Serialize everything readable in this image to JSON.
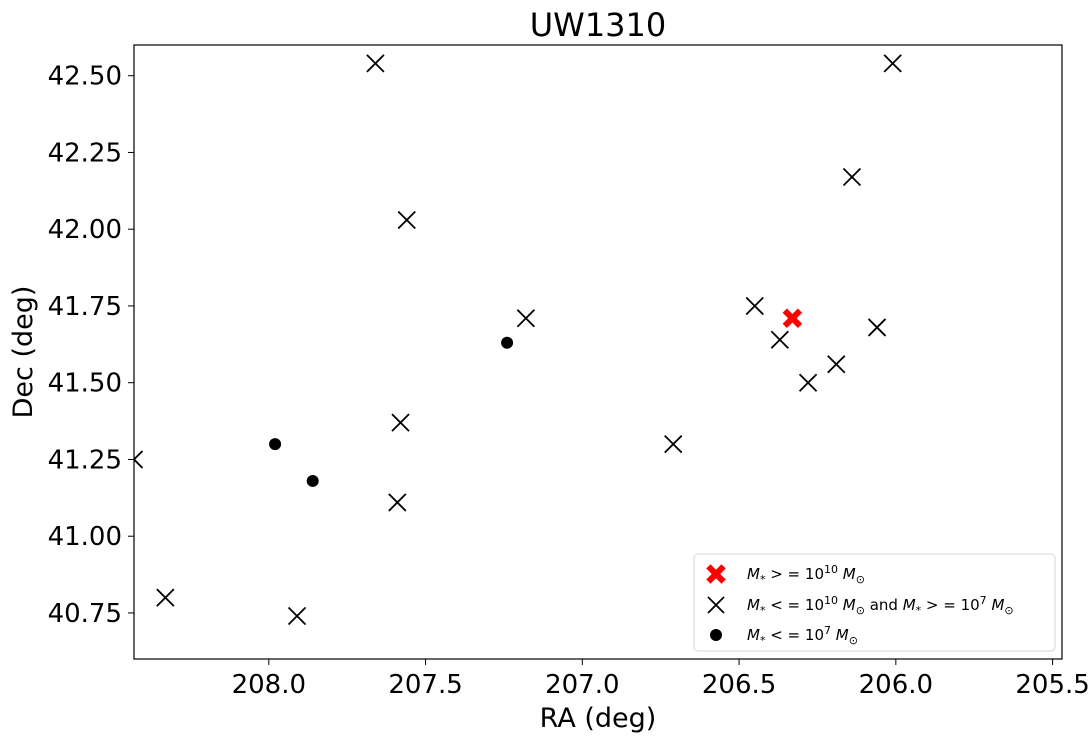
{
  "chart_data": {
    "type": "scatter",
    "title": "UW1310",
    "xlabel": "RA (deg)",
    "ylabel": "Dec (deg)",
    "xlim": [
      208.43,
      205.47
    ],
    "ylim": [
      40.6,
      42.6
    ],
    "x_inverted": true,
    "x_ticks": [
      208.0,
      207.5,
      207.0,
      206.5,
      206.0,
      205.5
    ],
    "x_tick_labels": [
      "208.0",
      "207.5",
      "207.0",
      "206.5",
      "206.0",
      "205.5"
    ],
    "y_ticks": [
      40.75,
      41.0,
      41.25,
      41.5,
      41.75,
      42.0,
      42.25,
      42.5
    ],
    "y_tick_labels": [
      "40.75",
      "41.00",
      "41.25",
      "41.50",
      "41.75",
      "42.00",
      "42.25",
      "42.50"
    ],
    "grid": false,
    "legend_position": "lower-right",
    "series": [
      {
        "name": "M* >= 10^10 M_sun",
        "marker": "filled-x",
        "color": "#ff0000",
        "points": [
          [
            206.33,
            41.71
          ]
        ]
      },
      {
        "name": "M* <= 10^10 M_sun and M* >= 10^7 M_sun",
        "marker": "x",
        "color": "#000000",
        "points": [
          [
            208.43,
            41.25
          ],
          [
            208.33,
            40.8
          ],
          [
            207.91,
            40.74
          ],
          [
            207.66,
            42.54
          ],
          [
            207.58,
            41.37
          ],
          [
            207.59,
            41.11
          ],
          [
            207.56,
            42.03
          ],
          [
            207.18,
            41.71
          ],
          [
            206.71,
            41.3
          ],
          [
            206.45,
            41.75
          ],
          [
            206.37,
            41.64
          ],
          [
            206.28,
            41.5
          ],
          [
            206.19,
            41.56
          ],
          [
            206.14,
            42.17
          ],
          [
            206.06,
            41.68
          ],
          [
            206.01,
            42.54
          ]
        ]
      },
      {
        "name": "M* <= 10^7 M_sun",
        "marker": "circle",
        "color": "#000000",
        "points": [
          [
            207.98,
            41.3
          ],
          [
            207.86,
            41.18
          ],
          [
            207.24,
            41.63
          ]
        ]
      }
    ],
    "legend": [
      {
        "marker": "filled-x",
        "color": "#ff0000",
        "parts": [
          [
            "it",
            "M"
          ],
          [
            "sub",
            "*"
          ],
          [
            "n",
            " > = 10"
          ],
          [
            "sup",
            "10"
          ],
          [
            "it",
            " M"
          ],
          [
            "sub",
            "⊙"
          ]
        ]
      },
      {
        "marker": "x",
        "color": "#000000",
        "parts": [
          [
            "it",
            "M"
          ],
          [
            "sub",
            "*"
          ],
          [
            "n",
            " < = 10"
          ],
          [
            "sup",
            "10"
          ],
          [
            "it",
            " M"
          ],
          [
            "sub",
            "⊙"
          ],
          [
            "n",
            "  and "
          ],
          [
            "it",
            "M"
          ],
          [
            "sub",
            "*"
          ],
          [
            "n",
            " > = 10"
          ],
          [
            "sup",
            "7"
          ],
          [
            "it",
            " M"
          ],
          [
            "sub",
            "⊙"
          ]
        ]
      },
      {
        "marker": "circle",
        "color": "#000000",
        "parts": [
          [
            "it",
            "M"
          ],
          [
            "sub",
            "*"
          ],
          [
            "n",
            " < = 10"
          ],
          [
            "sup",
            "7"
          ],
          [
            "it",
            " M"
          ],
          [
            "sub",
            "⊙"
          ]
        ]
      }
    ]
  }
}
